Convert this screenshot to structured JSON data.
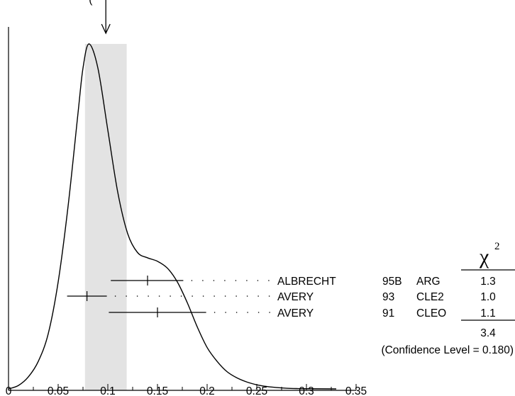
{
  "chart_data": {
    "type": "ideogram",
    "top_label": "(",
    "xlim": [
      0,
      0.35
    ],
    "x_ticks": [
      "0",
      "0.05",
      "0.1",
      "0.15",
      "0.2",
      "0.25",
      "0.3",
      "0.35"
    ],
    "x_tick_values": [
      0,
      0.05,
      0.1,
      0.15,
      0.2,
      0.25,
      0.3,
      0.35
    ],
    "average_marker": 0.098,
    "band": [
      0.077,
      0.119
    ],
    "curve_peak": 0.081,
    "curve": [
      [
        0.0,
        0.0
      ],
      [
        0.01,
        0.01
      ],
      [
        0.02,
        0.035
      ],
      [
        0.03,
        0.08
      ],
      [
        0.04,
        0.16
      ],
      [
        0.05,
        0.31
      ],
      [
        0.06,
        0.53
      ],
      [
        0.07,
        0.8
      ],
      [
        0.075,
        0.93
      ],
      [
        0.081,
        1.0
      ],
      [
        0.09,
        0.93
      ],
      [
        0.1,
        0.75
      ],
      [
        0.11,
        0.57
      ],
      [
        0.12,
        0.45
      ],
      [
        0.13,
        0.395
      ],
      [
        0.14,
        0.38
      ],
      [
        0.15,
        0.37
      ],
      [
        0.16,
        0.35
      ],
      [
        0.17,
        0.31
      ],
      [
        0.18,
        0.25
      ],
      [
        0.19,
        0.18
      ],
      [
        0.2,
        0.12
      ],
      [
        0.21,
        0.08
      ],
      [
        0.22,
        0.05
      ],
      [
        0.23,
        0.032
      ],
      [
        0.24,
        0.02
      ],
      [
        0.25,
        0.012
      ],
      [
        0.26,
        0.007
      ],
      [
        0.27,
        0.004
      ],
      [
        0.28,
        0.002
      ],
      [
        0.29,
        0.001
      ],
      [
        0.3,
        0.0005
      ],
      [
        0.33,
        0.0
      ]
    ],
    "measurements": [
      {
        "author": "ALBRECHT",
        "year": "95B",
        "experiment": "ARG",
        "value": 0.14,
        "err_low": 0.103,
        "err_high": 0.176,
        "chi2": "1.3"
      },
      {
        "author": "AVERY",
        "year": "93",
        "experiment": "CLE2",
        "value": 0.079,
        "err_low": 0.059,
        "err_high": 0.099,
        "chi2": "1.0"
      },
      {
        "author": "AVERY",
        "year": "91",
        "experiment": "CLEO",
        "value": 0.15,
        "err_low": 0.101,
        "err_high": 0.199,
        "chi2": "1.1"
      }
    ],
    "chi2_symbol": "χ",
    "chi2_exponent": "2",
    "chi2_total": "3.4",
    "confidence_text": "(Confidence Level = 0.180)"
  }
}
